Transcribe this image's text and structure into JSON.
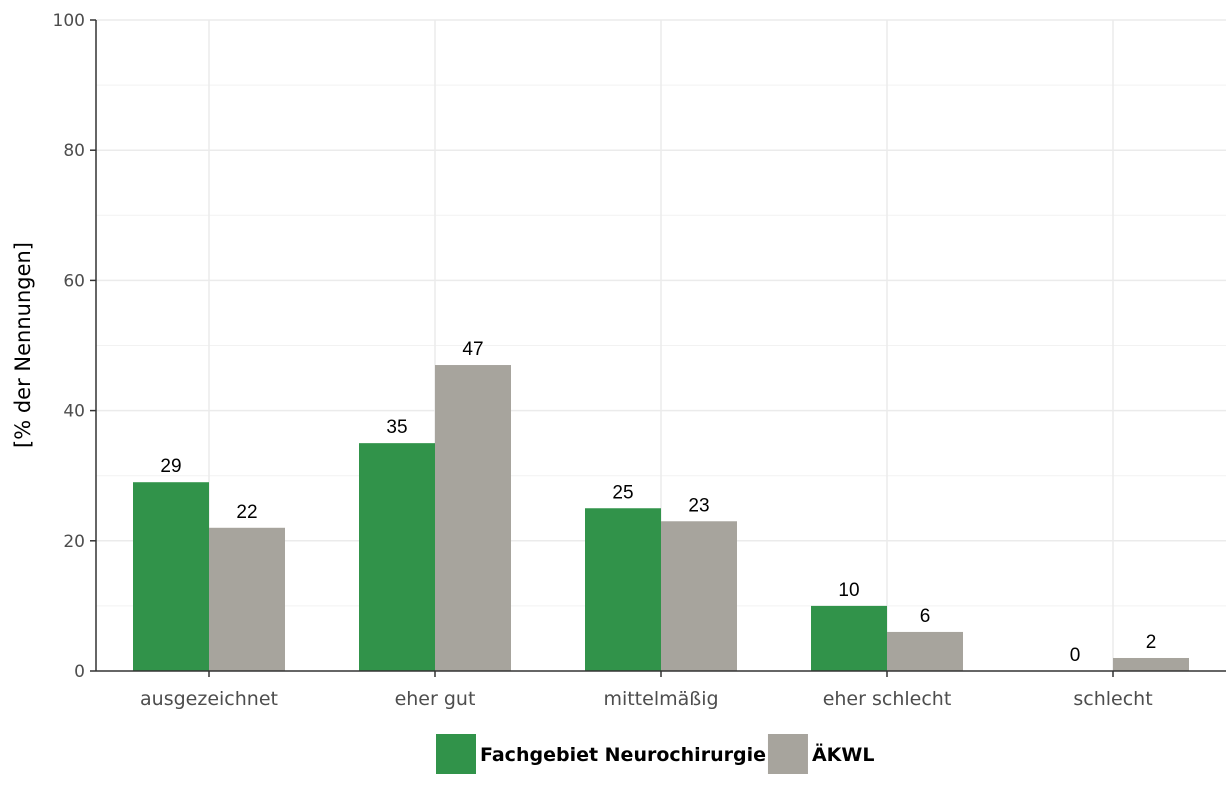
{
  "chart_data": {
    "type": "bar",
    "title": "",
    "xlabel": "",
    "ylabel": "[% der Nennungen]",
    "ylim": [
      0,
      100
    ],
    "yticks": [
      0,
      20,
      40,
      60,
      80,
      100
    ],
    "categories": [
      "ausgezeichnet",
      "eher gut",
      "mittelmäßig",
      "eher schlecht",
      "schlecht"
    ],
    "series": [
      {
        "name": "Fachgebiet Neurochirurgie",
        "color": "#31934a",
        "values": [
          29,
          35,
          25,
          10,
          0
        ]
      },
      {
        "name": "ÄKWL",
        "color": "#a7a49d",
        "values": [
          22,
          47,
          23,
          6,
          2
        ]
      }
    ],
    "grid": true,
    "legend": "bottom-center"
  }
}
